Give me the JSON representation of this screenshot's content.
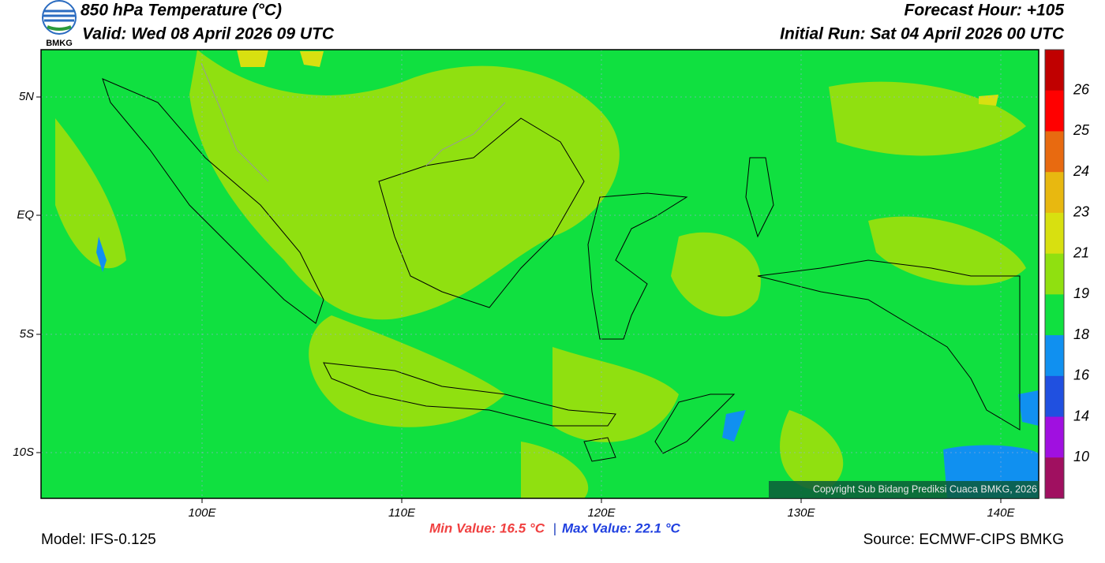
{
  "header": {
    "title": "850 hPa Temperature (°C)",
    "valid": "Valid: Wed 08 April 2026 09 UTC",
    "forecast_hour": "Forecast Hour: +105",
    "initial_run": "Initial Run: Sat 04 April 2026 00 UTC",
    "logo_text": "BMKG"
  },
  "map": {
    "lat_labels": [
      "5N",
      "EQ",
      "5S",
      "10S"
    ],
    "lon_labels": [
      "100E",
      "110E",
      "120E",
      "130E",
      "140E"
    ],
    "copyright": "Copyright Sub Bidang Prediksi Cuaca BMKG, 2026",
    "base_color": "#10e040",
    "patch_color": "#90e010"
  },
  "colorbar": {
    "labels": [
      26,
      25,
      24,
      23,
      21,
      19,
      18,
      16,
      14,
      10
    ],
    "colors": [
      "#c00000",
      "#ff0000",
      "#e86a10",
      "#e8b810",
      "#d8e010",
      "#90e010",
      "#10e040",
      "#1090f0",
      "#2050e0",
      "#a010e0",
      "#a01060"
    ]
  },
  "footer": {
    "model": "Model: IFS-0.125",
    "min_value": "Min Value: 16.5 °C",
    "separator": "|",
    "max_value": "Max Value: 22.1 °C",
    "source": "Source: ECMWF-CIPS BMKG"
  }
}
